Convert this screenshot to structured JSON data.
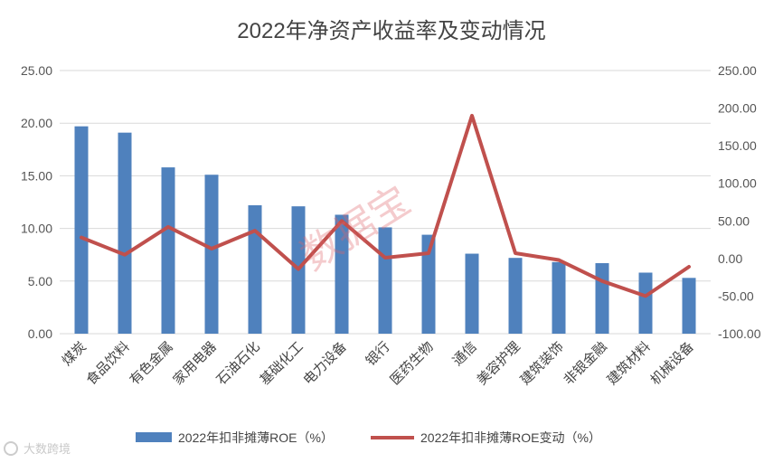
{
  "chart_data": {
    "type": "bar-line",
    "title": "2022年净资产收益率及变动情况",
    "categories": [
      "煤炭",
      "食品饮料",
      "有色金属",
      "家用电器",
      "石油石化",
      "基础化工",
      "电力设备",
      "银行",
      "医药生物",
      "通信",
      "美容护理",
      "建筑装饰",
      "非银金融",
      "建筑材料",
      "机械设备"
    ],
    "series": [
      {
        "name": "2022年扣非摊薄ROE（%）",
        "type": "bar",
        "axis": "left",
        "color": "#4f81bd",
        "values": [
          19.7,
          19.1,
          15.8,
          15.1,
          12.2,
          12.1,
          11.3,
          10.1,
          9.4,
          7.6,
          7.2,
          6.8,
          6.7,
          5.8,
          5.3
        ]
      },
      {
        "name": "2022年扣非摊薄ROE变动（%）",
        "type": "line",
        "axis": "right",
        "color": "#c0504d",
        "values": [
          28,
          5,
          42,
          13,
          37,
          -14,
          50,
          1,
          7,
          190,
          7,
          -2,
          -30,
          -50,
          -11
        ]
      }
    ],
    "y_left": {
      "min": 0,
      "max": 25,
      "step": 5,
      "ticks": [
        "0.00",
        "5.00",
        "10.00",
        "15.00",
        "20.00",
        "25.00"
      ]
    },
    "y_right": {
      "min": -100,
      "max": 250,
      "step": 50,
      "ticks": [
        "-100.00",
        "-50.00",
        "0.00",
        "50.00",
        "100.00",
        "150.00",
        "200.00",
        "250.00"
      ]
    },
    "grid": true,
    "legend": "bottom"
  },
  "watermark": "数据宝",
  "brand": "大数跨境"
}
